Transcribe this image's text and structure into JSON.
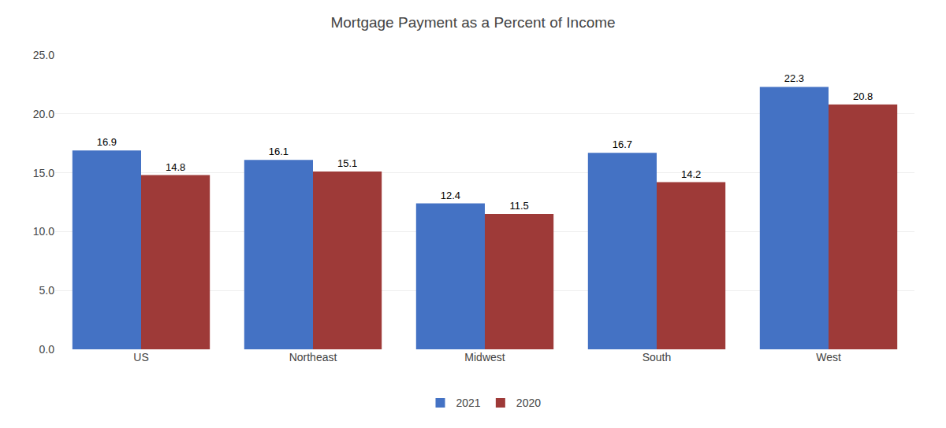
{
  "chart_data": {
    "type": "bar",
    "title": "Mortgage Payment as a Percent of Income",
    "categories": [
      "US",
      "Northeast",
      "Midwest",
      "South",
      "West"
    ],
    "series": [
      {
        "name": "2021",
        "color": "#4472C4",
        "values": [
          16.9,
          16.1,
          12.4,
          16.7,
          22.3
        ]
      },
      {
        "name": "2020",
        "color": "#9E3A38",
        "values": [
          14.8,
          15.1,
          11.5,
          14.2,
          20.8
        ]
      }
    ],
    "ylim": [
      0,
      25.0
    ],
    "yticks": [
      {
        "value": 0.0,
        "label": "0.0"
      },
      {
        "value": 5.0,
        "label": "5.0"
      },
      {
        "value": 10.0,
        "label": "10.0"
      },
      {
        "value": 15.0,
        "label": "15.0"
      },
      {
        "value": 20.0,
        "label": "20.0"
      },
      {
        "value": 25.0,
        "label": "25.0"
      }
    ],
    "grid": true,
    "legend": "bottom",
    "data_labels": true
  }
}
